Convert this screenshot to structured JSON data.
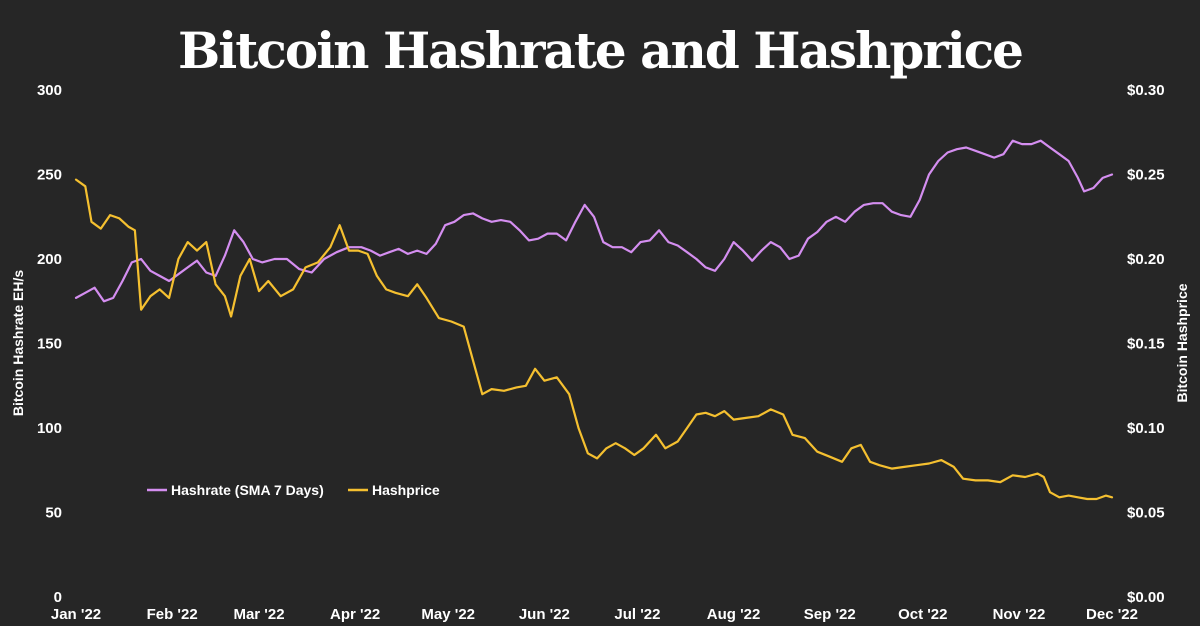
{
  "chart_data": {
    "type": "line",
    "title": "Bitcoin Hashrate and Hashprice",
    "x_ticks": [
      "Jan '22",
      "Feb '22",
      "Mar '22",
      "Apr '22",
      "May '22",
      "Jun '22",
      "Jul '22",
      "Aug '22",
      "Sep '22",
      "Oct '22",
      "Nov '22",
      "Dec '22"
    ],
    "xlim": [
      "2022-01-01",
      "2022-12-01"
    ],
    "y_left": {
      "label": "Bitcoin Hashrate EH/s",
      "lim": [
        0,
        300
      ],
      "ticks": [
        "0",
        "50",
        "100",
        "150",
        "200",
        "250",
        "300"
      ]
    },
    "y_right": {
      "label": "Bitcoin Hashprice",
      "lim": [
        0,
        0.3
      ],
      "ticks": [
        "$0.00",
        "$0.05",
        "$0.10",
        "$0.15",
        "$0.20",
        "$0.25",
        "$0.30"
      ]
    },
    "grid": false,
    "legend_position": "lower-left",
    "series": [
      {
        "name": "Hashrate (SMA 7 Days)",
        "color": "#d48ef0",
        "axis": "left",
        "points": [
          [
            "2022-01-01",
            177
          ],
          [
            "2022-01-04",
            180
          ],
          [
            "2022-01-07",
            183
          ],
          [
            "2022-01-10",
            175
          ],
          [
            "2022-01-13",
            177
          ],
          [
            "2022-01-16",
            187
          ],
          [
            "2022-01-19",
            198
          ],
          [
            "2022-01-22",
            200
          ],
          [
            "2022-01-25",
            193
          ],
          [
            "2022-01-28",
            190
          ],
          [
            "2022-01-31",
            187
          ],
          [
            "2022-02-03",
            191
          ],
          [
            "2022-02-06",
            195
          ],
          [
            "2022-02-09",
            199
          ],
          [
            "2022-02-12",
            192
          ],
          [
            "2022-02-15",
            190
          ],
          [
            "2022-02-18",
            202
          ],
          [
            "2022-02-21",
            217
          ],
          [
            "2022-02-24",
            210
          ],
          [
            "2022-02-27",
            200
          ],
          [
            "2022-03-02",
            198
          ],
          [
            "2022-03-06",
            200
          ],
          [
            "2022-03-10",
            200
          ],
          [
            "2022-03-14",
            194
          ],
          [
            "2022-03-18",
            192
          ],
          [
            "2022-03-22",
            200
          ],
          [
            "2022-03-26",
            204
          ],
          [
            "2022-03-30",
            207
          ],
          [
            "2022-04-03",
            207
          ],
          [
            "2022-04-06",
            205
          ],
          [
            "2022-04-09",
            202
          ],
          [
            "2022-04-12",
            204
          ],
          [
            "2022-04-15",
            206
          ],
          [
            "2022-04-18",
            203
          ],
          [
            "2022-04-21",
            205
          ],
          [
            "2022-04-24",
            203
          ],
          [
            "2022-04-27",
            209
          ],
          [
            "2022-04-30",
            220
          ],
          [
            "2022-05-03",
            222
          ],
          [
            "2022-05-06",
            226
          ],
          [
            "2022-05-09",
            227
          ],
          [
            "2022-05-12",
            224
          ],
          [
            "2022-05-15",
            222
          ],
          [
            "2022-05-18",
            223
          ],
          [
            "2022-05-21",
            222
          ],
          [
            "2022-05-24",
            217
          ],
          [
            "2022-05-27",
            211
          ],
          [
            "2022-05-30",
            212
          ],
          [
            "2022-06-02",
            215
          ],
          [
            "2022-06-05",
            215
          ],
          [
            "2022-06-08",
            211
          ],
          [
            "2022-06-11",
            222
          ],
          [
            "2022-06-14",
            232
          ],
          [
            "2022-06-17",
            225
          ],
          [
            "2022-06-20",
            210
          ],
          [
            "2022-06-23",
            207
          ],
          [
            "2022-06-26",
            207
          ],
          [
            "2022-06-29",
            204
          ],
          [
            "2022-07-02",
            210
          ],
          [
            "2022-07-05",
            211
          ],
          [
            "2022-07-08",
            217
          ],
          [
            "2022-07-11",
            210
          ],
          [
            "2022-07-14",
            208
          ],
          [
            "2022-07-17",
            204
          ],
          [
            "2022-07-20",
            200
          ],
          [
            "2022-07-23",
            195
          ],
          [
            "2022-07-26",
            193
          ],
          [
            "2022-07-29",
            200
          ],
          [
            "2022-08-01",
            210
          ],
          [
            "2022-08-04",
            205
          ],
          [
            "2022-08-07",
            199
          ],
          [
            "2022-08-10",
            205
          ],
          [
            "2022-08-13",
            210
          ],
          [
            "2022-08-16",
            207
          ],
          [
            "2022-08-19",
            200
          ],
          [
            "2022-08-22",
            202
          ],
          [
            "2022-08-25",
            212
          ],
          [
            "2022-08-28",
            216
          ],
          [
            "2022-08-31",
            222
          ],
          [
            "2022-09-03",
            225
          ],
          [
            "2022-09-06",
            222
          ],
          [
            "2022-09-09",
            228
          ],
          [
            "2022-09-12",
            232
          ],
          [
            "2022-09-15",
            233
          ],
          [
            "2022-09-18",
            233
          ],
          [
            "2022-09-21",
            228
          ],
          [
            "2022-09-24",
            226
          ],
          [
            "2022-09-27",
            225
          ],
          [
            "2022-09-30",
            235
          ],
          [
            "2022-10-03",
            250
          ],
          [
            "2022-10-06",
            258
          ],
          [
            "2022-10-09",
            263
          ],
          [
            "2022-10-12",
            265
          ],
          [
            "2022-10-15",
            266
          ],
          [
            "2022-10-18",
            264
          ],
          [
            "2022-10-21",
            262
          ],
          [
            "2022-10-24",
            260
          ],
          [
            "2022-10-27",
            262
          ],
          [
            "2022-10-30",
            270
          ],
          [
            "2022-11-02",
            268
          ],
          [
            "2022-11-05",
            268
          ],
          [
            "2022-11-08",
            270
          ],
          [
            "2022-11-11",
            266
          ],
          [
            "2022-11-14",
            262
          ],
          [
            "2022-11-17",
            258
          ],
          [
            "2022-11-20",
            248
          ],
          [
            "2022-11-22",
            240
          ],
          [
            "2022-11-25",
            242
          ],
          [
            "2022-11-28",
            248
          ],
          [
            "2022-12-01",
            250
          ]
        ]
      },
      {
        "name": "Hashprice",
        "color": "#f5c030",
        "axis": "right",
        "points": [
          [
            "2022-01-01",
            0.247
          ],
          [
            "2022-01-04",
            0.243
          ],
          [
            "2022-01-06",
            0.222
          ],
          [
            "2022-01-09",
            0.218
          ],
          [
            "2022-01-12",
            0.226
          ],
          [
            "2022-01-15",
            0.224
          ],
          [
            "2022-01-18",
            0.219
          ],
          [
            "2022-01-20",
            0.217
          ],
          [
            "2022-01-22",
            0.17
          ],
          [
            "2022-01-25",
            0.178
          ],
          [
            "2022-01-28",
            0.182
          ],
          [
            "2022-01-31",
            0.177
          ],
          [
            "2022-02-03",
            0.2
          ],
          [
            "2022-02-06",
            0.21
          ],
          [
            "2022-02-09",
            0.205
          ],
          [
            "2022-02-12",
            0.21
          ],
          [
            "2022-02-15",
            0.185
          ],
          [
            "2022-02-18",
            0.178
          ],
          [
            "2022-02-20",
            0.166
          ],
          [
            "2022-02-23",
            0.19
          ],
          [
            "2022-02-26",
            0.2
          ],
          [
            "2022-03-01",
            0.181
          ],
          [
            "2022-03-04",
            0.187
          ],
          [
            "2022-03-08",
            0.178
          ],
          [
            "2022-03-12",
            0.182
          ],
          [
            "2022-03-16",
            0.195
          ],
          [
            "2022-03-20",
            0.198
          ],
          [
            "2022-03-24",
            0.207
          ],
          [
            "2022-03-27",
            0.22
          ],
          [
            "2022-03-30",
            0.205
          ],
          [
            "2022-04-02",
            0.205
          ],
          [
            "2022-04-05",
            0.203
          ],
          [
            "2022-04-08",
            0.19
          ],
          [
            "2022-04-11",
            0.182
          ],
          [
            "2022-04-14",
            0.18
          ],
          [
            "2022-04-18",
            0.178
          ],
          [
            "2022-04-21",
            0.185
          ],
          [
            "2022-04-24",
            0.177
          ],
          [
            "2022-04-28",
            0.165
          ],
          [
            "2022-05-02",
            0.163
          ],
          [
            "2022-05-06",
            0.16
          ],
          [
            "2022-05-09",
            0.14
          ],
          [
            "2022-05-12",
            0.12
          ],
          [
            "2022-05-15",
            0.123
          ],
          [
            "2022-05-19",
            0.122
          ],
          [
            "2022-05-23",
            0.124
          ],
          [
            "2022-05-26",
            0.125
          ],
          [
            "2022-05-29",
            0.135
          ],
          [
            "2022-06-01",
            0.128
          ],
          [
            "2022-06-05",
            0.13
          ],
          [
            "2022-06-09",
            0.12
          ],
          [
            "2022-06-12",
            0.1
          ],
          [
            "2022-06-15",
            0.085
          ],
          [
            "2022-06-18",
            0.082
          ],
          [
            "2022-06-21",
            0.088
          ],
          [
            "2022-06-24",
            0.091
          ],
          [
            "2022-06-27",
            0.088
          ],
          [
            "2022-06-30",
            0.084
          ],
          [
            "2022-07-03",
            0.088
          ],
          [
            "2022-07-07",
            0.096
          ],
          [
            "2022-07-10",
            0.088
          ],
          [
            "2022-07-14",
            0.092
          ],
          [
            "2022-07-17",
            0.1
          ],
          [
            "2022-07-20",
            0.108
          ],
          [
            "2022-07-23",
            0.109
          ],
          [
            "2022-07-26",
            0.107
          ],
          [
            "2022-07-29",
            0.11
          ],
          [
            "2022-08-01",
            0.105
          ],
          [
            "2022-08-05",
            0.106
          ],
          [
            "2022-08-09",
            0.107
          ],
          [
            "2022-08-13",
            0.111
          ],
          [
            "2022-08-17",
            0.108
          ],
          [
            "2022-08-20",
            0.096
          ],
          [
            "2022-08-24",
            0.094
          ],
          [
            "2022-08-28",
            0.086
          ],
          [
            "2022-09-01",
            0.083
          ],
          [
            "2022-09-05",
            0.08
          ],
          [
            "2022-09-08",
            0.088
          ],
          [
            "2022-09-11",
            0.09
          ],
          [
            "2022-09-14",
            0.08
          ],
          [
            "2022-09-17",
            0.078
          ],
          [
            "2022-09-21",
            0.076
          ],
          [
            "2022-09-25",
            0.077
          ],
          [
            "2022-09-29",
            0.078
          ],
          [
            "2022-10-03",
            0.079
          ],
          [
            "2022-10-07",
            0.081
          ],
          [
            "2022-10-11",
            0.077
          ],
          [
            "2022-10-14",
            0.07
          ],
          [
            "2022-10-18",
            0.069
          ],
          [
            "2022-10-22",
            0.069
          ],
          [
            "2022-10-26",
            0.068
          ],
          [
            "2022-10-30",
            0.072
          ],
          [
            "2022-11-03",
            0.071
          ],
          [
            "2022-11-07",
            0.073
          ],
          [
            "2022-11-09",
            0.071
          ],
          [
            "2022-11-11",
            0.062
          ],
          [
            "2022-11-14",
            0.059
          ],
          [
            "2022-11-17",
            0.06
          ],
          [
            "2022-11-20",
            0.059
          ],
          [
            "2022-11-23",
            0.058
          ],
          [
            "2022-11-26",
            0.058
          ],
          [
            "2022-11-29",
            0.06
          ],
          [
            "2022-12-01",
            0.059
          ]
        ]
      }
    ]
  }
}
